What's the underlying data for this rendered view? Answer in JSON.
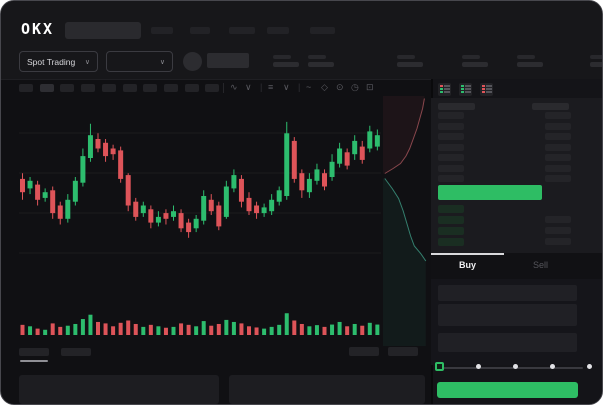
{
  "brand": {
    "logo": "OKX"
  },
  "nav": {
    "item_count": 5
  },
  "market": {
    "selector_label": "Spot Trading",
    "chevron": "∨"
  },
  "toolbar": {
    "timeframe_count": 10,
    "active_timeframe_index": 1,
    "icons": [
      {
        "name": "indicators-icon",
        "glyph": "∿"
      },
      {
        "name": "chevron-down-icon",
        "glyph": "∨"
      },
      {
        "name": "divider",
        "glyph": "|"
      },
      {
        "name": "chart-style-icon",
        "glyph": "≡"
      },
      {
        "name": "chevron-down-icon",
        "glyph": "∨"
      },
      {
        "name": "divider",
        "glyph": "|"
      },
      {
        "name": "line-tool-icon",
        "glyph": "~"
      },
      {
        "name": "draw-tool-icon",
        "glyph": "◇"
      },
      {
        "name": "snapshot-icon",
        "glyph": "⊙"
      },
      {
        "name": "history-icon",
        "glyph": "◷"
      },
      {
        "name": "fullscreen-icon",
        "glyph": "⊡"
      }
    ]
  },
  "orderbook": {
    "view_icons": [
      {
        "name": "book-combined-icon",
        "rows": [
          "#de5459",
          "#2dbd6e",
          "#2dbd6e"
        ]
      },
      {
        "name": "book-bids-icon",
        "rows": [
          "#2dbd6e",
          "#2dbd6e",
          "#2dbd6e"
        ]
      },
      {
        "name": "book-asks-icon",
        "rows": [
          "#de5459",
          "#de5459",
          "#de5459"
        ]
      }
    ],
    "ask_row_count": 7,
    "bid_row_count": 4,
    "right_ask_row_count": 7,
    "right_bid_row_count": 3
  },
  "order_form": {
    "tabs": [
      {
        "label": "Buy",
        "active": true
      },
      {
        "label": "Sell",
        "active": false
      }
    ],
    "slider_dot_count": 4
  },
  "colors": {
    "up": "#2dbd6e",
    "down": "#de5459",
    "accent_green": "#2ebd64",
    "grid": "#1b1b1e",
    "depth_ask_line": "#8a474d",
    "depth_bid_line": "#35806f",
    "depth_ask_fill": "rgba(190,80,88,0.08)",
    "depth_bid_fill": "rgba(45,140,115,0.09)"
  },
  "chart_data": {
    "type": "candlestick",
    "price_range": [
      0,
      100
    ],
    "grid": "horizontal",
    "candles": [
      [
        59,
        62,
        48,
        52
      ],
      [
        54,
        60,
        51,
        58
      ],
      [
        56,
        58,
        45,
        48
      ],
      [
        49,
        54,
        47,
        52
      ],
      [
        53,
        55,
        38,
        41
      ],
      [
        45,
        47,
        35,
        38
      ],
      [
        38,
        51,
        36,
        48
      ],
      [
        47,
        60,
        45,
        58
      ],
      [
        57,
        75,
        55,
        71
      ],
      [
        70,
        88,
        68,
        82
      ],
      [
        80,
        83,
        73,
        75
      ],
      [
        78,
        80,
        68,
        71
      ],
      [
        75,
        77,
        69,
        72
      ],
      [
        74,
        76,
        57,
        59
      ],
      [
        61,
        62,
        42,
        45
      ],
      [
        47,
        49,
        37,
        39
      ],
      [
        41,
        47,
        39,
        45
      ],
      [
        43,
        45,
        33,
        36
      ],
      [
        36,
        42,
        34,
        39
      ],
      [
        41,
        43,
        35,
        38
      ],
      [
        39,
        45,
        37,
        42
      ],
      [
        41,
        43,
        31,
        33
      ],
      [
        36,
        38,
        28,
        31
      ],
      [
        33,
        40,
        31,
        38
      ],
      [
        37,
        53,
        35,
        50
      ],
      [
        48,
        51,
        40,
        42
      ],
      [
        45,
        47,
        32,
        34
      ],
      [
        39,
        58,
        38,
        55
      ],
      [
        54,
        64,
        52,
        61
      ],
      [
        59,
        61,
        44,
        47
      ],
      [
        49,
        52,
        40,
        42
      ],
      [
        45,
        47,
        38,
        41
      ],
      [
        41,
        46,
        39,
        44
      ],
      [
        42,
        51,
        40,
        48
      ],
      [
        47,
        55,
        45,
        53
      ],
      [
        50,
        89,
        48,
        83
      ],
      [
        79,
        81,
        57,
        59
      ],
      [
        62,
        64,
        49,
        53
      ],
      [
        52,
        62,
        49,
        59
      ],
      [
        58,
        67,
        56,
        64
      ],
      [
        62,
        64,
        53,
        55
      ],
      [
        60,
        72,
        58,
        68
      ],
      [
        67,
        78,
        65,
        75
      ],
      [
        73,
        75,
        64,
        66
      ],
      [
        72,
        82,
        69,
        79
      ],
      [
        76,
        79,
        67,
        69
      ],
      [
        75,
        87,
        73,
        84
      ],
      [
        76,
        85,
        74,
        82
      ]
    ],
    "volumes": [
      35,
      30,
      22,
      18,
      40,
      28,
      32,
      38,
      55,
      70,
      45,
      40,
      30,
      42,
      50,
      38,
      28,
      35,
      30,
      25,
      28,
      40,
      35,
      30,
      48,
      32,
      38,
      52,
      45,
      40,
      30,
      26,
      22,
      28,
      35,
      75,
      50,
      38,
      30,
      34,
      28,
      36,
      45,
      30,
      38,
      32,
      42,
      36
    ],
    "depth": {
      "asks": [
        [
          0.9,
          0.01
        ],
        [
          0.86,
          0.05
        ],
        [
          0.8,
          0.09
        ],
        [
          0.74,
          0.13
        ],
        [
          0.66,
          0.17
        ],
        [
          0.58,
          0.21
        ],
        [
          0.5,
          0.24
        ],
        [
          0.38,
          0.27
        ],
        [
          0.22,
          0.29
        ],
        [
          0.04,
          0.31
        ]
      ],
      "bids": [
        [
          0.04,
          0.33
        ],
        [
          0.2,
          0.37
        ],
        [
          0.34,
          0.41
        ],
        [
          0.44,
          0.46
        ],
        [
          0.52,
          0.51
        ],
        [
          0.6,
          0.56
        ],
        [
          0.68,
          0.6
        ],
        [
          0.82,
          0.63
        ],
        [
          0.93,
          0.66
        ]
      ]
    }
  }
}
